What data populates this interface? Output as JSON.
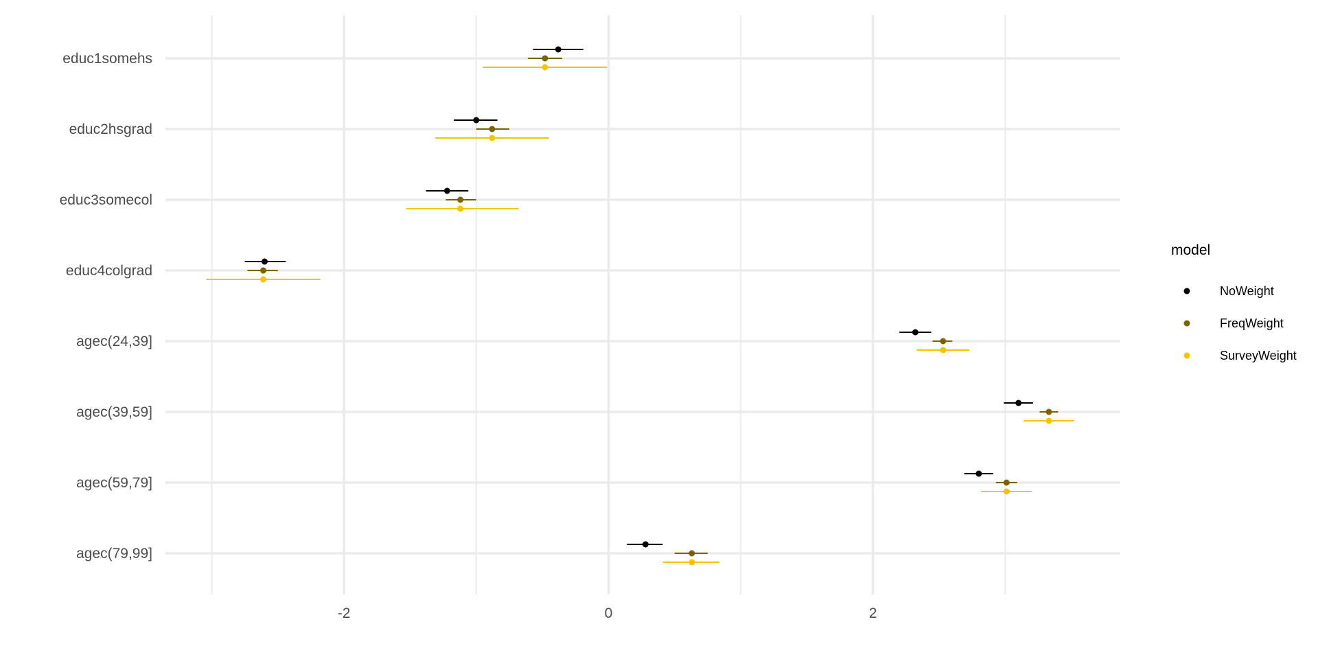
{
  "chart_data": {
    "type": "scatter",
    "subtype": "coefficient-plot-with-error-bars",
    "title": "",
    "xlabel": "",
    "ylabel": "",
    "categories": [
      "educ1somehs",
      "educ2hsgrad",
      "educ3somecol",
      "educ4colgrad",
      "agec(24,39]",
      "agec(39,59]",
      "agec(59,79]",
      "agec(79,99]"
    ],
    "xlim": [
      -3.35,
      3.87
    ],
    "xticks": [
      -2,
      0,
      2
    ],
    "xtick_labels": [
      "-2",
      "0",
      "2"
    ],
    "grid": true,
    "legend": {
      "title": "model",
      "position": "right"
    },
    "series": [
      {
        "name": "NoWeight",
        "color": "#000000",
        "estimates": [
          -0.38,
          -1.0,
          -1.22,
          -2.6,
          2.32,
          3.1,
          2.8,
          0.28
        ],
        "lower": [
          -0.57,
          -1.17,
          -1.38,
          -2.75,
          2.2,
          2.99,
          2.69,
          0.14
        ],
        "upper": [
          -0.19,
          -0.84,
          -1.06,
          -2.44,
          2.44,
          3.21,
          2.91,
          0.41
        ]
      },
      {
        "name": "FreqWeight",
        "color": "#7a6300",
        "estimates": [
          -0.48,
          -0.88,
          -1.12,
          -2.61,
          2.53,
          3.33,
          3.01,
          0.63
        ],
        "lower": [
          -0.61,
          -1.0,
          -1.23,
          -2.73,
          2.45,
          3.26,
          2.93,
          0.5
        ],
        "upper": [
          -0.35,
          -0.75,
          -1.0,
          -2.5,
          2.6,
          3.4,
          3.09,
          0.75
        ]
      },
      {
        "name": "SurveyWeight",
        "color": "#f5c400",
        "estimates": [
          -0.48,
          -0.88,
          -1.12,
          -2.61,
          2.53,
          3.33,
          3.01,
          0.63
        ],
        "lower": [
          -0.95,
          -1.31,
          -1.53,
          -3.04,
          2.33,
          3.14,
          2.82,
          0.41
        ],
        "upper": [
          -0.01,
          -0.45,
          -0.68,
          -2.18,
          2.73,
          3.52,
          3.2,
          0.84
        ]
      }
    ]
  }
}
